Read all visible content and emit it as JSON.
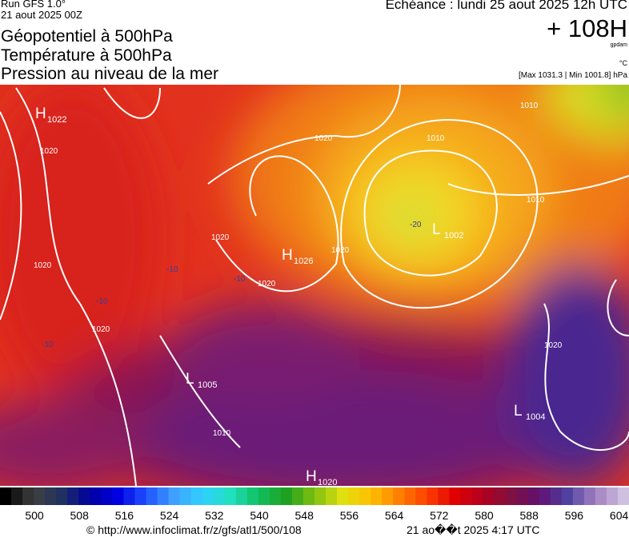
{
  "header": {
    "run": "Run GFS 1.0°",
    "run_date": "21 aout 2025 00Z",
    "titles": [
      "Géopotentiel à 500hPa",
      "Température à 500hPa",
      "Pression au niveau de la mer"
    ],
    "echeance": "Echéance : lundi 25 aout 2025 12h UTC",
    "lead": "+ 108H",
    "unit_gp": "gpdam",
    "unit_temp": "°C",
    "range": "[Max 1031.3 | Min 1001.8] hPa"
  },
  "map": {
    "centers": [
      {
        "kind": "H",
        "value": 1022
      },
      {
        "kind": "H",
        "value": 1026
      },
      {
        "kind": "L",
        "value": 1002
      },
      {
        "kind": "L",
        "value": 1005
      },
      {
        "kind": "L",
        "value": 1004
      },
      {
        "kind": "H",
        "value": 1020
      }
    ],
    "isobar_labels": [
      1020,
      1020,
      1020,
      1020,
      1010,
      1010,
      1020,
      1020,
      1020,
      1010,
      1020,
      1010
    ],
    "temp_labels": [
      -10,
      -10,
      -10,
      -10,
      -20
    ]
  },
  "colorbar": {
    "ticks": [
      500,
      508,
      516,
      524,
      532,
      540,
      548,
      556,
      564,
      572,
      580,
      588,
      596,
      604
    ]
  },
  "footer": {
    "url": "© http://www.infoclimat.fr/z/gfs/atl1/500/108",
    "timestamp": "21 ao��t 2025  4:17 UTC"
  }
}
